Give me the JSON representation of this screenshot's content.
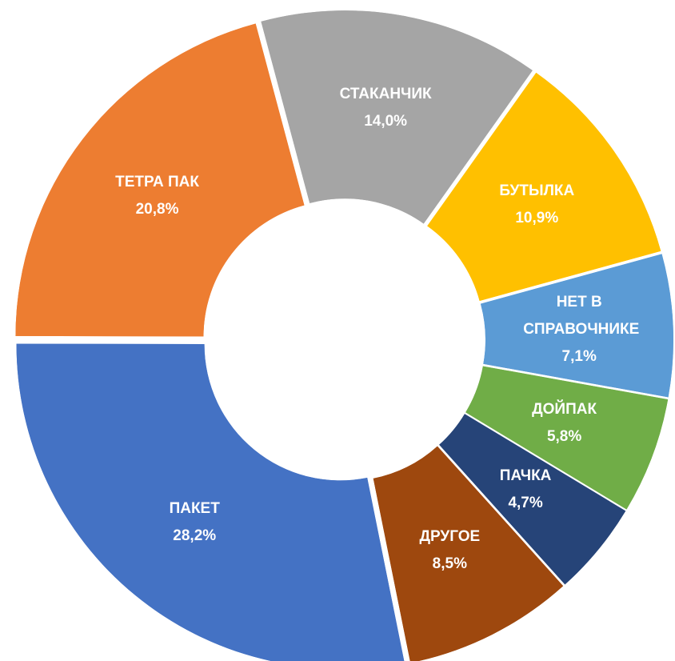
{
  "chart_data": {
    "type": "donut",
    "categories": [
      "СТАКАНЧИК",
      "БУТЫЛКА",
      "НЕТ В СПРАВОЧНИКЕ",
      "ДОЙПАК",
      "ПАЧКА",
      "ДРУГОЕ",
      "ПАКЕТ",
      "ТЕТРА ПАК"
    ],
    "values": [
      14.0,
      10.9,
      7.1,
      5.8,
      4.7,
      8.5,
      28.2,
      20.8
    ],
    "value_labels": [
      "14,0%",
      "10,9%",
      "7,1%",
      "5,8%",
      "4,7%",
      "8,5%",
      "28,2%",
      "20,8%"
    ],
    "colors": [
      "#a5a5a5",
      "#ffc000",
      "#5b9bd5",
      "#70ad47",
      "#264478",
      "#9e480e",
      "#4472c4",
      "#ed7d31"
    ]
  }
}
